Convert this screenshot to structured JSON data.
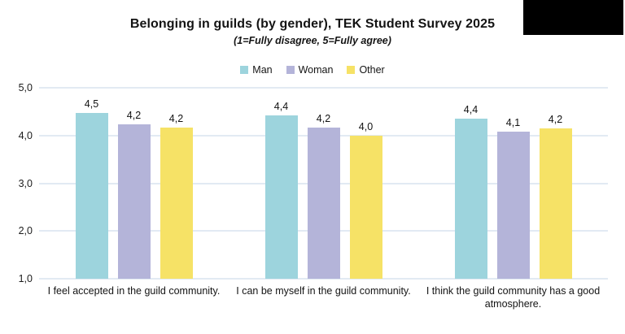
{
  "chart_data": {
    "type": "bar",
    "title": "Belonging in guilds (by gender), TEK Student Survey 2025",
    "subtitle": "(1=Fully disagree, 5=Fully agree)",
    "categories": [
      "I feel accepted in the guild community.",
      "I can be myself in the guild community.",
      "I think the guild community has a good atmosphere."
    ],
    "series": [
      {
        "name": "Man",
        "color": "#9dd4dd",
        "values": [
          4.5,
          4.4,
          4.4
        ],
        "labels": [
          "4,5",
          "4,4",
          "4,4"
        ],
        "values_precise": [
          4.47,
          4.42,
          4.36
        ]
      },
      {
        "name": "Woman",
        "color": "#b4b4d9",
        "values": [
          4.2,
          4.2,
          4.1
        ],
        "labels": [
          "4,2",
          "4,2",
          "4,1"
        ],
        "values_precise": [
          4.23,
          4.17,
          4.08
        ]
      },
      {
        "name": "Other",
        "color": "#f6e266",
        "values": [
          4.2,
          4.0,
          4.2
        ],
        "labels": [
          "4,2",
          "4,0",
          "4,2"
        ],
        "values_precise": [
          4.16,
          4.0,
          4.15
        ]
      }
    ],
    "y_axis": {
      "min": 1.0,
      "max": 5.0,
      "step": 1.0,
      "tick_labels": [
        "1,0",
        "2,0",
        "3,0",
        "4,0",
        "5,0"
      ]
    },
    "legend_position": "top",
    "grid": true,
    "grid_color": "#e2eaf3",
    "background_color": "#ffffff",
    "redaction_box_color": "#000000"
  }
}
